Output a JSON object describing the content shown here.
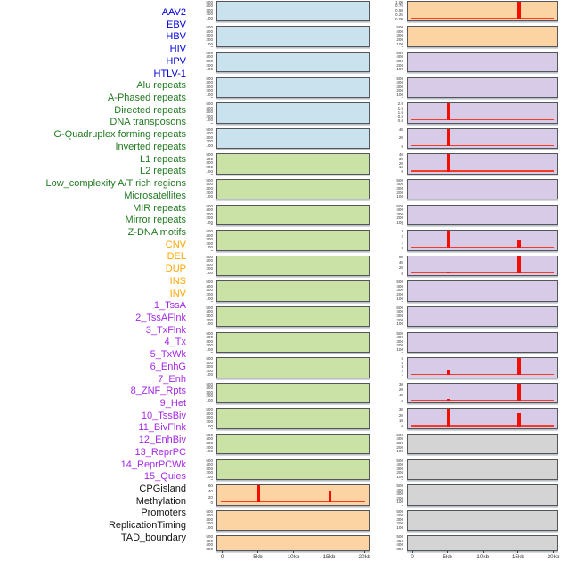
{
  "palette": {
    "panel_fill": {
      "virus": "#c9e2ee",
      "repeat": "#cbe2a6",
      "sv": "#fcd3a3",
      "chromatin": "#d8cbe8",
      "other": "#d4d4d4"
    },
    "label_text": {
      "virus": "#0000dd",
      "repeat": "#217a21",
      "sv": "#ffa500",
      "chromatin": "#a428e8",
      "other": "#141414"
    },
    "spike": "#f50d00",
    "baseline": "#f82a13",
    "panel_border": "#54565a",
    "axis_text": "#3c3c3c"
  },
  "chart_data": {
    "type": "bar",
    "title": "",
    "description": "44 genomic feature tracks in two panel columns; each panel shows feature density over a 0-20kb window; red bars mark peaks at 5kb and 15kb; zero baselines drawn in red on tracks with data.",
    "x": {
      "ticks": [
        "0",
        "5kb",
        "10kb",
        "15kb",
        "20kb"
      ],
      "range_kb": [
        0,
        20
      ],
      "label_unit": "kb"
    },
    "y_scales": {
      "count500": [
        "500",
        "400",
        "300",
        "200",
        "100",
        "0"
      ],
      "frac1": [
        "1.00",
        "0.75",
        "0.50",
        "0.25",
        "0.00"
      ],
      "frac2": [
        "2.0",
        "1.5",
        "1.0",
        "0.5",
        "0.0"
      ],
      "c40": [
        "40",
        "20",
        "0"
      ],
      "c40fine": [
        "40",
        "30",
        "20",
        "10",
        "0"
      ],
      "c3": [
        "3",
        "2",
        "1",
        "0"
      ],
      "c60": [
        "60",
        "40",
        "20",
        "0"
      ],
      "c5": [
        "5",
        "4",
        "3",
        "2",
        "1",
        "0"
      ],
      "c30": [
        "30",
        "20",
        "10",
        "0"
      ],
      "dense": [
        "500",
        "450",
        "400",
        "350",
        "300",
        "250",
        "200",
        "150",
        "100",
        "50",
        "0"
      ]
    },
    "groups": [
      {
        "id": "virus",
        "label_color_key": "virus"
      },
      {
        "id": "repeat",
        "label_color_key": "repeat"
      },
      {
        "id": "sv",
        "label_color_key": "sv"
      },
      {
        "id": "chromatin",
        "label_color_key": "chromatin"
      },
      {
        "id": "other",
        "label_color_key": "other"
      }
    ],
    "tracks": [
      {
        "name": "AAV2",
        "group": "virus",
        "column": "left",
        "row": 1,
        "y_scale": "count500",
        "baseline": false,
        "spikes": []
      },
      {
        "name": "EBV",
        "group": "virus",
        "column": "left",
        "row": 2,
        "y_scale": "count500",
        "baseline": false,
        "spikes": []
      },
      {
        "name": "HBV",
        "group": "virus",
        "column": "left",
        "row": 3,
        "y_scale": "count500",
        "baseline": false,
        "spikes": []
      },
      {
        "name": "HIV",
        "group": "virus",
        "column": "left",
        "row": 4,
        "y_scale": "count500",
        "baseline": false,
        "spikes": []
      },
      {
        "name": "HPV",
        "group": "virus",
        "column": "left",
        "row": 5,
        "y_scale": "count500",
        "baseline": false,
        "spikes": []
      },
      {
        "name": "HTLV-1",
        "group": "virus",
        "column": "left",
        "row": 6,
        "y_scale": "count500",
        "baseline": false,
        "spikes": []
      },
      {
        "name": "Alu repeats",
        "group": "repeat",
        "column": "left",
        "row": 7,
        "y_scale": "count500",
        "baseline": false,
        "spikes": []
      },
      {
        "name": "A-Phased repeats",
        "group": "repeat",
        "column": "left",
        "row": 8,
        "y_scale": "count500",
        "baseline": false,
        "spikes": []
      },
      {
        "name": "Directed repeats",
        "group": "repeat",
        "column": "left",
        "row": 9,
        "y_scale": "count500",
        "baseline": false,
        "spikes": []
      },
      {
        "name": "DNA transposons",
        "group": "repeat",
        "column": "left",
        "row": 10,
        "y_scale": "count500",
        "baseline": false,
        "spikes": []
      },
      {
        "name": "G-Quadruplex forming repeats",
        "group": "repeat",
        "column": "left",
        "row": 11,
        "y_scale": "count500",
        "baseline": false,
        "spikes": []
      },
      {
        "name": "Inverted repeats",
        "group": "repeat",
        "column": "left",
        "row": 12,
        "y_scale": "count500",
        "baseline": false,
        "spikes": []
      },
      {
        "name": "L1 repeats",
        "group": "repeat",
        "column": "left",
        "row": 13,
        "y_scale": "count500",
        "baseline": false,
        "spikes": []
      },
      {
        "name": "L2 repeats",
        "group": "repeat",
        "column": "left",
        "row": 14,
        "y_scale": "count500",
        "baseline": false,
        "spikes": []
      },
      {
        "name": "Low_complexity A/T rich regions",
        "group": "repeat",
        "column": "left",
        "row": 15,
        "y_scale": "count500",
        "baseline": false,
        "spikes": []
      },
      {
        "name": "Microsatellites",
        "group": "repeat",
        "column": "left",
        "row": 16,
        "y_scale": "count500",
        "baseline": false,
        "spikes": []
      },
      {
        "name": "MIR repeats",
        "group": "repeat",
        "column": "left",
        "row": 17,
        "y_scale": "count500",
        "baseline": false,
        "spikes": []
      },
      {
        "name": "Mirror repeats",
        "group": "repeat",
        "column": "left",
        "row": 18,
        "y_scale": "count500",
        "baseline": false,
        "spikes": []
      },
      {
        "name": "Z-DNA motifs",
        "group": "repeat",
        "column": "left",
        "row": 19,
        "y_scale": "count500",
        "baseline": false,
        "spikes": []
      },
      {
        "name": "CNV",
        "group": "sv",
        "column": "left",
        "row": 20,
        "y_scale": "c60",
        "baseline": true,
        "spikes": [
          {
            "x": "5kb",
            "value": 62,
            "frac": 1.0
          },
          {
            "x": "15kb",
            "value": 42,
            "frac": 0.68
          }
        ]
      },
      {
        "name": "DEL",
        "group": "sv",
        "column": "left",
        "row": 21,
        "y_scale": "count500",
        "baseline": false,
        "spikes": []
      },
      {
        "name": "DUP",
        "group": "sv",
        "column": "left",
        "row": 22,
        "y_scale": "dense",
        "baseline": false,
        "spikes": []
      },
      {
        "name": "INS",
        "group": "sv",
        "column": "right",
        "row": 1,
        "y_scale": "frac1",
        "baseline": true,
        "spikes": [
          {
            "x": "15kb",
            "value": 1.0,
            "frac": 1.0
          }
        ]
      },
      {
        "name": "INV",
        "group": "sv",
        "column": "right",
        "row": 2,
        "y_scale": "count500",
        "baseline": false,
        "spikes": []
      },
      {
        "name": "1_TssA",
        "group": "chromatin",
        "column": "right",
        "row": 3,
        "y_scale": "count500",
        "baseline": false,
        "spikes": []
      },
      {
        "name": "2_TssAFlnk",
        "group": "chromatin",
        "column": "right",
        "row": 4,
        "y_scale": "count500",
        "baseline": false,
        "spikes": []
      },
      {
        "name": "3_TxFlnk",
        "group": "chromatin",
        "column": "right",
        "row": 5,
        "y_scale": "frac2",
        "baseline": true,
        "spikes": [
          {
            "x": "5kb",
            "value": 2.0,
            "frac": 1.0
          }
        ]
      },
      {
        "name": "4_Tx",
        "group": "chromatin",
        "column": "right",
        "row": 6,
        "y_scale": "c40",
        "baseline": true,
        "spikes": [
          {
            "x": "5kb",
            "value": 42,
            "frac": 1.0
          }
        ]
      },
      {
        "name": "5_TxWk",
        "group": "chromatin",
        "column": "right",
        "row": 7,
        "y_scale": "c40fine",
        "baseline": true,
        "spikes": [
          {
            "x": "5kb",
            "value": 42,
            "frac": 1.0
          }
        ]
      },
      {
        "name": "6_EnhG",
        "group": "chromatin",
        "column": "right",
        "row": 8,
        "y_scale": "count500",
        "baseline": false,
        "spikes": []
      },
      {
        "name": "7_Enh",
        "group": "chromatin",
        "column": "right",
        "row": 9,
        "y_scale": "count500",
        "baseline": false,
        "spikes": []
      },
      {
        "name": "8_ZNF_Rpts",
        "group": "chromatin",
        "column": "right",
        "row": 10,
        "y_scale": "c3",
        "baseline": true,
        "spikes": [
          {
            "x": "5kb",
            "value": 3.1,
            "frac": 1.0
          },
          {
            "x": "15kb",
            "value": 1.2,
            "frac": 0.4
          }
        ]
      },
      {
        "name": "9_Het",
        "group": "chromatin",
        "column": "right",
        "row": 11,
        "y_scale": "c60",
        "baseline": true,
        "spikes": [
          {
            "x": "5kb",
            "value": 4,
            "frac": 0.07
          },
          {
            "x": "15kb",
            "value": 62,
            "frac": 1.0
          }
        ]
      },
      {
        "name": "10_TssBiv",
        "group": "chromatin",
        "column": "right",
        "row": 12,
        "y_scale": "count500",
        "baseline": false,
        "spikes": []
      },
      {
        "name": "11_BivFlnk",
        "group": "chromatin",
        "column": "right",
        "row": 13,
        "y_scale": "count500",
        "baseline": false,
        "spikes": []
      },
      {
        "name": "12_EnhBiv",
        "group": "chromatin",
        "column": "right",
        "row": 14,
        "y_scale": "count500",
        "baseline": false,
        "spikes": []
      },
      {
        "name": "13_ReprPC",
        "group": "chromatin",
        "column": "right",
        "row": 15,
        "y_scale": "c5",
        "baseline": true,
        "spikes": [
          {
            "x": "5kb",
            "value": 1.4,
            "frac": 0.28
          },
          {
            "x": "15kb",
            "value": 5.1,
            "frac": 1.0
          }
        ]
      },
      {
        "name": "14_ReprPCWk",
        "group": "chromatin",
        "column": "right",
        "row": 16,
        "y_scale": "c30",
        "baseline": true,
        "spikes": [
          {
            "x": "5kb",
            "value": 2.5,
            "frac": 0.08
          },
          {
            "x": "15kb",
            "value": 31,
            "frac": 1.0
          }
        ]
      },
      {
        "name": "15_Quies",
        "group": "chromatin",
        "column": "right",
        "row": 17,
        "y_scale": "c30",
        "baseline": true,
        "spikes": [
          {
            "x": "5kb",
            "value": 31,
            "frac": 1.0
          },
          {
            "x": "15kb",
            "value": 24,
            "frac": 0.78
          }
        ]
      },
      {
        "name": "CPGisland",
        "group": "other",
        "column": "right",
        "row": 18,
        "y_scale": "count500",
        "baseline": false,
        "spikes": []
      },
      {
        "name": "Methylation",
        "group": "other",
        "column": "right",
        "row": 19,
        "y_scale": "count500",
        "baseline": false,
        "spikes": []
      },
      {
        "name": "Promoters",
        "group": "other",
        "column": "right",
        "row": 20,
        "y_scale": "count500",
        "baseline": false,
        "spikes": []
      },
      {
        "name": "ReplicationTiming",
        "group": "other",
        "column": "right",
        "row": 21,
        "y_scale": "count500",
        "baseline": false,
        "spikes": []
      },
      {
        "name": "TAD_boundary",
        "group": "other",
        "column": "right",
        "row": 22,
        "y_scale": "dense",
        "baseline": false,
        "spikes": []
      }
    ]
  }
}
